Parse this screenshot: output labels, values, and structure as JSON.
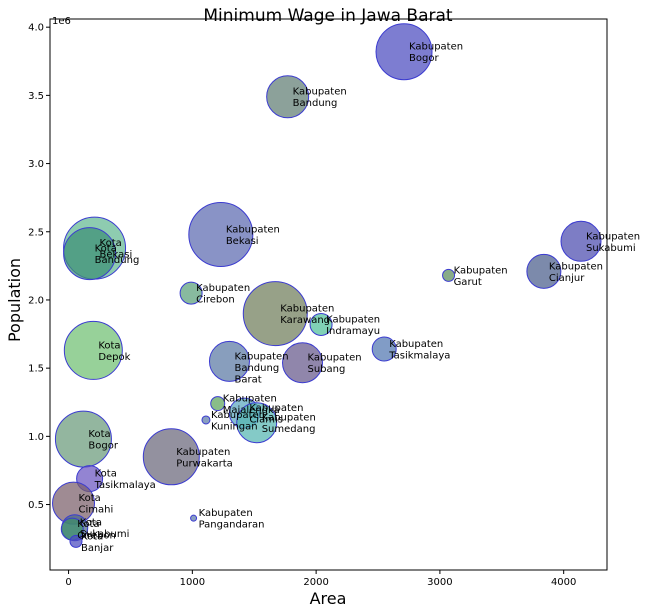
{
  "chart_data": {
    "type": "scatter",
    "title": "Minimum Wage in Jawa Barat",
    "xlabel": "Area",
    "ylabel": "Population",
    "y_multiplier": "1e6",
    "xlim": [
      -150,
      4350
    ],
    "ylim": [
      20000,
      4060000
    ],
    "x_ticks": [
      0,
      1000,
      2000,
      3000,
      4000
    ],
    "y_ticks": [
      500000,
      1000000,
      1500000,
      2000000,
      2500000,
      3000000,
      3500000,
      4000000
    ],
    "y_tick_labels": [
      "0.5",
      "1.0",
      "1.5",
      "2.0",
      "2.5",
      "3.0",
      "3.5",
      "4.0"
    ],
    "grid": false,
    "points": [
      {
        "label": "Kabupaten\nBogor",
        "x": 2710,
        "y": 3820000,
        "r": 28,
        "color": "#4b4bbf"
      },
      {
        "label": "Kabupaten\nBandung",
        "x": 1770,
        "y": 3490000,
        "r": 21,
        "color": "#607d73"
      },
      {
        "label": "Kabupaten\nSukabumi",
        "x": 4140,
        "y": 2430000,
        "r": 20,
        "color": "#4b4bae"
      },
      {
        "label": "Kabupaten\nCianjur",
        "x": 3840,
        "y": 2210000,
        "r": 17,
        "color": "#4a5d8a"
      },
      {
        "label": "Kabupaten\nGarut",
        "x": 3070,
        "y": 2180000,
        "r": 6,
        "color": "#5a8a5a"
      },
      {
        "label": "Kabupaten\nBekasi",
        "x": 1230,
        "y": 2480000,
        "r": 32,
        "color": "#5c69b0"
      },
      {
        "label": "Kota\nBekasi",
        "x": 210,
        "y": 2380000,
        "r": 31,
        "color": "#62b892"
      },
      {
        "label": "Kota\nBandung",
        "x": 170,
        "y": 2340000,
        "r": 26,
        "color": "#3d8f76"
      },
      {
        "label": "Kabupaten\nCirebon",
        "x": 990,
        "y": 2050000,
        "r": 11,
        "color": "#5aa07a"
      },
      {
        "label": "Kabupaten\nKarawang",
        "x": 1670,
        "y": 1900000,
        "r": 32,
        "color": "#6f7d5a"
      },
      {
        "label": "Kabupaten\nIndramayu",
        "x": 2040,
        "y": 1820000,
        "r": 11,
        "color": "#4fbf9a"
      },
      {
        "label": "Kabupaten\nTasikmalaya",
        "x": 2550,
        "y": 1640000,
        "r": 12,
        "color": "#5176b0"
      },
      {
        "label": "Kota\nDepok",
        "x": 200,
        "y": 1630000,
        "r": 29,
        "color": "#6fbf72"
      },
      {
        "label": "Kabupaten\nBandung\nBarat",
        "x": 1300,
        "y": 1550000,
        "r": 20,
        "color": "#5a79a3"
      },
      {
        "label": "Kabupaten\nSubang",
        "x": 1890,
        "y": 1540000,
        "r": 20,
        "color": "#65588a"
      },
      {
        "label": "Kabupaten\nMajalengka",
        "x": 1205,
        "y": 1240000,
        "r": 7,
        "color": "#5ba35a"
      },
      {
        "label": "Kabupaten\nCiamis",
        "x": 1420,
        "y": 1170000,
        "r": 15,
        "color": "#5aa6bf"
      },
      {
        "label": "Kabupaten\nKuningan",
        "x": 1110,
        "y": 1120000,
        "r": 4,
        "color": "#5c7aa8"
      },
      {
        "label": "Kabupaten\nSumedang",
        "x": 1520,
        "y": 1100000,
        "r": 20,
        "color": "#55b5b2"
      },
      {
        "label": "Kota\nBogor",
        "x": 120,
        "y": 980000,
        "r": 28,
        "color": "#6a9a7a"
      },
      {
        "label": "Kabupaten\nPurwakarta",
        "x": 830,
        "y": 850000,
        "r": 28,
        "color": "#6a677a"
      },
      {
        "label": "Kota\nTasikmalaya",
        "x": 170,
        "y": 690000,
        "r": 13,
        "color": "#6a55c0"
      },
      {
        "label": "Kota\nCimahi",
        "x": 40,
        "y": 510000,
        "r": 21,
        "color": "#7a5e6a"
      },
      {
        "label": "Kabupaten\nPangandaran",
        "x": 1010,
        "y": 400000,
        "r": 3,
        "color": "#5c7aa8"
      },
      {
        "label": "Kota\nSukabumi",
        "x": 50,
        "y": 330000,
        "r": 13,
        "color": "#4a6a8a"
      },
      {
        "label": "Kota\nCirebon",
        "x": 30,
        "y": 320000,
        "r": 11,
        "color": "#3d8f6a"
      },
      {
        "label": "Kota\nBanjar",
        "x": 60,
        "y": 230000,
        "r": 6,
        "color": "#4b4bbf"
      }
    ]
  }
}
